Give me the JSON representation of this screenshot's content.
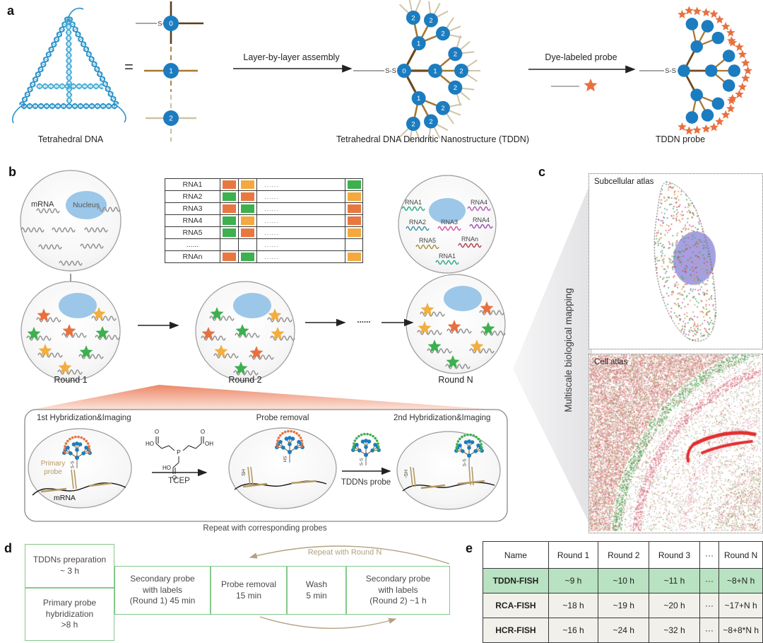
{
  "colors": {
    "node_blue": "#1c7cc0",
    "star_orange": "#e8703f",
    "star_amber": "#f2ae3f",
    "star_green": "#3cb04e",
    "swatch": {
      "orange": "#e87840",
      "amber": "#f3a93d",
      "green": "#3cb14e"
    },
    "nucleus_blue": "#9cc7e8",
    "nucleus_purple": "#a09bde",
    "highlight_green": "#b9e2c2",
    "row_beige": "#f1f0ea",
    "box_green_border": "#84c88a",
    "tan": "#b5a283",
    "salmon": "#ec8561"
  },
  "panel_a": {
    "label": "a",
    "tetrahedral_caption": "Tetrahedral DNA",
    "equals_sign": "=",
    "ss_label": "S-S",
    "node_labels": [
      "0",
      "1",
      "2"
    ],
    "assembly_arrow_label": "Layer-by-layer assembly",
    "tddn_caption": "Tetrahedral DNA Dendritic Nanostructure (TDDN)",
    "dye_arrow_label": "Dye-labeled probe",
    "probe_caption": "TDDN probe"
  },
  "panel_b": {
    "label": "b",
    "cell1": {
      "mrna": "mRNA",
      "nucleus": "Nucleus"
    },
    "rna_table": {
      "rows": [
        {
          "name": "RNA1",
          "round1": "orange",
          "round2": "amber",
          "dots": "......",
          "roundN": "green"
        },
        {
          "name": "RNA2",
          "round1": "green",
          "round2": "orange",
          "dots": "......",
          "roundN": "amber"
        },
        {
          "name": "RNA3",
          "round1": "orange",
          "round2": "green",
          "dots": "......",
          "roundN": "orange"
        },
        {
          "name": "RNA4",
          "round1": "green",
          "round2": "amber",
          "dots": "......",
          "roundN": "orange"
        },
        {
          "name": "RNA5",
          "round1": "green",
          "round2": "orange",
          "dots": "......",
          "roundN": "amber"
        },
        {
          "name": "......",
          "round1": null,
          "round2": null,
          "dots": "......",
          "roundN": null
        },
        {
          "name": "RNAn",
          "round1": "orange",
          "round2": "green",
          "dots": "......",
          "roundN": "amber"
        }
      ]
    },
    "round_labels": [
      "Round 1",
      "Round 2",
      "Round N"
    ],
    "ellipsis": "......",
    "final_cell_rnas": [
      {
        "name": "RNA1",
        "color": "#2fa98c"
      },
      {
        "name": "RNA4",
        "color": "#b65cb0"
      },
      {
        "name": "RNA2",
        "color": "#3f93a8"
      },
      {
        "name": "RNA3",
        "color": "#d553a8"
      },
      {
        "name": "RNA4",
        "color": "#9d55b0"
      },
      {
        "name": "RNA5",
        "color": "#a3914f"
      },
      {
        "name": "RNAn",
        "color": "#b33c50"
      },
      {
        "name": "RNA1",
        "color": "#2fa98c"
      }
    ],
    "zoom_box": {
      "step1_title": "1st Hybridization&Imaging",
      "primary_probe": "Primary\nprobe",
      "mrna": "mRNA",
      "ss": "S-S",
      "hs": "HS",
      "sh": "SH",
      "neg_sh": "-SH",
      "tcep": {
        "label": "TCEP",
        "atoms": [
          "HO",
          "O",
          "O",
          "OH",
          "HO",
          "O",
          "P"
        ]
      },
      "step2_title": "Probe removal",
      "tddns_probe_label": "TDDNs probe",
      "step3_title": "2nd Hybridization&Imaging",
      "caption": "Repeat with corresponding probes"
    }
  },
  "panel_c": {
    "label": "c",
    "axis_label": "Multiscale biological mapping",
    "subcellular_title": "Subcellular atlas",
    "cell_atlas_title": "Cell atlas"
  },
  "panel_d": {
    "label": "d",
    "boxes": {
      "prep": "TDDNs preparation\n~ 3 h",
      "primary": "Primary probe\nhybridization\n>8 h",
      "secondary1": "Secondary probe\nwith labels\n(Round 1) 45 min",
      "removal": "Probe removal\n15 min",
      "wash": "Wash\n5 min",
      "secondary2": "Secondary probe\nwith labels\n(Round 2) ~1 h"
    },
    "repeat_label": "Repeat with Round N"
  },
  "panel_e": {
    "label": "e",
    "table": {
      "headers": [
        "Name",
        "Round 1",
        "Round 2",
        "Round 3",
        "···",
        "Round N"
      ],
      "rows": [
        {
          "name": "TDDN-FISH",
          "values": [
            "~9 h",
            "~10 h",
            "~11 h",
            "···",
            "~8+N h"
          ],
          "highlight": true
        },
        {
          "name": "RCA-FISH",
          "values": [
            "~18 h",
            "~19 h",
            "~20 h",
            "···",
            "~17+N h"
          ],
          "highlight": false
        },
        {
          "name": "HCR-FISH",
          "values": [
            "~16 h",
            "~24 h",
            "~32 h",
            "···",
            "~8+8*N h"
          ],
          "highlight": false
        }
      ]
    }
  }
}
